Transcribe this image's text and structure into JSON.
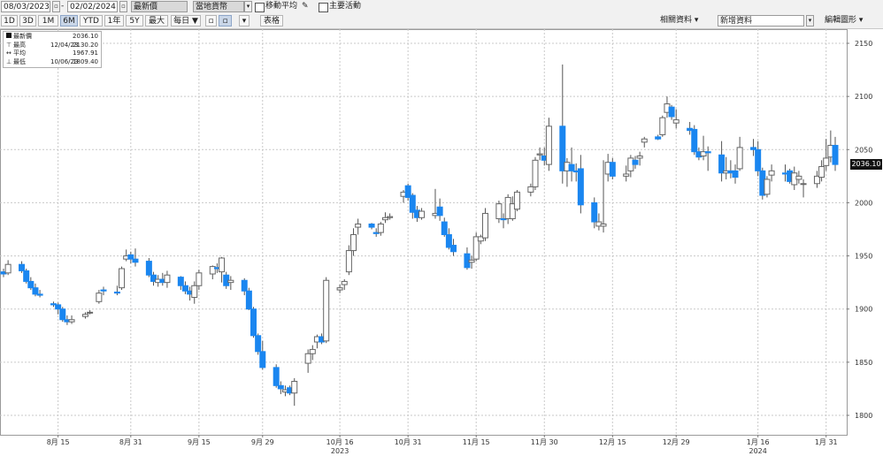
{
  "toolbar": {
    "start_date": "08/03/2023",
    "end_date": "02/02/2024",
    "field_value": "最新價",
    "currency_value": "當地貨幣",
    "moving_avg_label": "移動平均",
    "key_events_label": "主要活動",
    "periods": [
      "1D",
      "3D",
      "1M",
      "6M",
      "YTD",
      "1年",
      "5Y",
      "最大"
    ],
    "selected_period": "6M",
    "frequency_value": "每日 ▼",
    "table_label": "表格",
    "related_data_label": "相關資料",
    "new_data_label": "新增資料",
    "edit_chart_label": "編輯圖形"
  },
  "legend": {
    "last": {
      "label": "最新價",
      "value": "2036.10"
    },
    "high": {
      "label": "最高",
      "date": "12/04/23",
      "value": "2130.20"
    },
    "average": {
      "label": "平均",
      "value": "1967.91"
    },
    "low": {
      "label": "最低",
      "date": "10/06/23",
      "value": "1809.40"
    }
  },
  "current_price_label": "2036.10",
  "colors": {
    "up": "#ffffff",
    "down": "#1a86f0",
    "grid": "#c9c9c9",
    "wick": "#555555"
  },
  "chart_data": {
    "type": "candlestick",
    "ylim": [
      1780,
      2160
    ],
    "y_ticks": [
      1800,
      1850,
      1900,
      1950,
      2000,
      2050,
      2100,
      2150
    ],
    "x_ticks": [
      {
        "date": "2023-08-15",
        "label": "8月 15"
      },
      {
        "date": "2023-08-31",
        "label": "8月 31"
      },
      {
        "date": "2023-09-15",
        "label": "9月 15"
      },
      {
        "date": "2023-09-29",
        "label": "9月 29"
      },
      {
        "date": "2023-10-16",
        "label": "10月 16"
      },
      {
        "date": "2023-10-31",
        "label": "10月 31"
      },
      {
        "date": "2023-11-15",
        "label": "11月 15"
      },
      {
        "date": "2023-11-30",
        "label": "11月 30"
      },
      {
        "date": "2023-12-15",
        "label": "12月 15"
      },
      {
        "date": "2023-12-29",
        "label": "12月 29"
      },
      {
        "date": "2024-01-16",
        "label": "1月 16"
      },
      {
        "date": "2024-01-31",
        "label": "1月 31"
      }
    ],
    "year_labels": [
      {
        "date": "2023-10-16",
        "label": "2023"
      },
      {
        "date": "2024-01-16",
        "label": "2024"
      }
    ],
    "date_range": [
      "2023-08-03",
      "2024-02-02"
    ],
    "ohlc": [
      [
        "2023-08-03",
        1935,
        1938,
        1930,
        1933
      ],
      [
        "2023-08-04",
        1934,
        1946,
        1932,
        1942
      ],
      [
        "2023-08-07",
        1942,
        1945,
        1934,
        1936
      ],
      [
        "2023-08-08",
        1936,
        1938,
        1924,
        1926
      ],
      [
        "2023-08-09",
        1926,
        1930,
        1918,
        1920
      ],
      [
        "2023-08-10",
        1920,
        1924,
        1912,
        1914
      ],
      [
        "2023-08-11",
        1914,
        1918,
        1911,
        1913
      ],
      [
        "2023-08-14",
        1905,
        1907,
        1902,
        1904
      ],
      [
        "2023-08-15",
        1904,
        1906,
        1895,
        1900
      ],
      [
        "2023-08-16",
        1900,
        1902,
        1888,
        1890
      ],
      [
        "2023-08-17",
        1890,
        1894,
        1885,
        1888
      ],
      [
        "2023-08-18",
        1888,
        1894,
        1886,
        1890
      ],
      [
        "2023-08-21",
        1893,
        1897,
        1891,
        1895
      ],
      [
        "2023-08-22",
        1897,
        1899,
        1895,
        1897
      ],
      [
        "2023-08-24",
        1907,
        1918,
        1905,
        1915
      ],
      [
        "2023-08-25",
        1918,
        1921,
        1913,
        1917
      ],
      [
        "2023-08-28",
        1916,
        1922,
        1913,
        1915
      ],
      [
        "2023-08-29",
        1920,
        1940,
        1918,
        1938
      ],
      [
        "2023-08-30",
        1947,
        1956,
        1945,
        1950
      ],
      [
        "2023-08-31",
        1951,
        1954,
        1943,
        1947
      ],
      [
        "2023-09-01",
        1947,
        1957,
        1940,
        1944
      ],
      [
        "2023-09-04",
        1945,
        1948,
        1930,
        1932
      ],
      [
        "2023-09-05",
        1932,
        1935,
        1922,
        1926
      ],
      [
        "2023-09-06",
        1925,
        1932,
        1921,
        1928
      ],
      [
        "2023-09-07",
        1928,
        1934,
        1922,
        1925
      ],
      [
        "2023-09-08",
        1925,
        1936,
        1920,
        1932
      ],
      [
        "2023-09-11",
        1930,
        1931,
        1918,
        1922
      ],
      [
        "2023-09-12",
        1922,
        1926,
        1914,
        1917
      ],
      [
        "2023-09-13",
        1917,
        1921,
        1908,
        1914
      ],
      [
        "2023-09-14",
        1911,
        1926,
        1905,
        1922
      ],
      [
        "2023-09-15",
        1922,
        1937,
        1918,
        1934
      ],
      [
        "2023-09-18",
        1933,
        1941,
        1928,
        1940
      ],
      [
        "2023-09-19",
        1939,
        1943,
        1934,
        1938
      ],
      [
        "2023-09-20",
        1935,
        1949,
        1925,
        1948
      ],
      [
        "2023-09-21",
        1932,
        1935,
        1919,
        1922
      ],
      [
        "2023-09-22",
        1925,
        1931,
        1918,
        1927
      ],
      [
        "2023-09-25",
        1927,
        1929,
        1913,
        1917
      ],
      [
        "2023-09-26",
        1917,
        1920,
        1899,
        1900
      ],
      [
        "2023-09-27",
        1900,
        1902,
        1873,
        1875
      ],
      [
        "2023-09-28",
        1875,
        1877,
        1857,
        1860
      ],
      [
        "2023-09-29",
        1860,
        1870,
        1843,
        1845
      ],
      [
        "2023-10-02",
        1845,
        1848,
        1826,
        1828
      ],
      [
        "2023-10-03",
        1828,
        1832,
        1820,
        1825
      ],
      [
        "2023-10-04",
        1822,
        1828,
        1818,
        1824
      ],
      [
        "2023-10-05",
        1826,
        1828,
        1819,
        1821
      ],
      [
        "2023-10-06",
        1821,
        1835,
        1809,
        1832
      ],
      [
        "2023-10-09",
        1849,
        1862,
        1840,
        1858
      ],
      [
        "2023-10-10",
        1858,
        1866,
        1852,
        1862
      ],
      [
        "2023-10-11",
        1869,
        1876,
        1863,
        1874
      ],
      [
        "2023-10-12",
        1874,
        1877,
        1867,
        1869
      ],
      [
        "2023-10-13",
        1870,
        1930,
        1868,
        1927
      ],
      [
        "2023-10-16",
        1918,
        1923,
        1915,
        1920
      ],
      [
        "2023-10-17",
        1923,
        1928,
        1918,
        1926
      ],
      [
        "2023-10-18",
        1935,
        1960,
        1932,
        1955
      ],
      [
        "2023-10-19",
        1955,
        1976,
        1950,
        1970
      ],
      [
        "2023-10-20",
        1977,
        1985,
        1970,
        1980
      ],
      [
        "2023-10-23",
        1980,
        1981,
        1975,
        1977
      ],
      [
        "2023-10-24",
        1972,
        1976,
        1968,
        1971
      ],
      [
        "2023-10-25",
        1972,
        1982,
        1969,
        1980
      ],
      [
        "2023-10-26",
        1984,
        1991,
        1981,
        1986
      ],
      [
        "2023-10-27",
        1986,
        1990,
        1984,
        1987
      ],
      [
        "2023-10-30",
        2006,
        2012,
        2000,
        2010
      ],
      [
        "2023-10-31",
        2016,
        2018,
        2002,
        2005
      ],
      [
        "2023-11-01",
        2007,
        2009,
        1985,
        1991
      ],
      [
        "2023-11-02",
        1993,
        1997,
        1982,
        1986
      ],
      [
        "2023-11-03",
        1986,
        1995,
        1984,
        1992
      ],
      [
        "2023-11-06",
        1988,
        2013,
        1985,
        1990
      ],
      [
        "2023-11-07",
        1996,
        2004,
        1983,
        1988
      ],
      [
        "2023-11-08",
        1982,
        1986,
        1968,
        1970
      ],
      [
        "2023-11-09",
        1970,
        1976,
        1956,
        1958
      ],
      [
        "2023-11-10",
        1960,
        1966,
        1950,
        1954
      ],
      [
        "2023-11-13",
        1952,
        1958,
        1937,
        1939
      ],
      [
        "2023-11-14",
        1944,
        1950,
        1938,
        1946
      ],
      [
        "2023-11-15",
        1947,
        1972,
        1945,
        1968
      ],
      [
        "2023-11-16",
        1964,
        1970,
        1961,
        1968
      ],
      [
        "2023-11-17",
        1967,
        1995,
        1964,
        1990
      ],
      [
        "2023-11-20",
        1985,
        2002,
        1981,
        1999
      ],
      [
        "2023-11-21",
        1985,
        1990,
        1976,
        1984
      ],
      [
        "2023-11-22",
        1985,
        2008,
        1980,
        2005
      ],
      [
        "2023-11-23",
        1985,
        2006,
        1983,
        1999
      ],
      [
        "2023-11-24",
        1994,
        2012,
        1992,
        2010
      ],
      [
        "2023-11-27",
        2010,
        2018,
        2006,
        2015
      ],
      [
        "2023-11-28",
        2015,
        2043,
        2012,
        2040
      ],
      [
        "2023-11-29",
        2045,
        2052,
        2040,
        2046
      ],
      [
        "2023-11-30",
        2044,
        2052,
        2035,
        2040
      ],
      [
        "2023-12-01",
        2036,
        2080,
        2030,
        2072
      ],
      [
        "2023-12-04",
        2072,
        2130,
        2018,
        2030
      ],
      [
        "2023-12-05",
        2030,
        2042,
        2015,
        2038
      ],
      [
        "2023-12-06",
        2036,
        2052,
        2020,
        2030
      ],
      [
        "2023-12-07",
        2030,
        2037,
        2020,
        2029
      ],
      [
        "2023-12-08",
        2032,
        2045,
        1990,
        1998
      ],
      [
        "2023-12-11",
        2000,
        2005,
        1976,
        1982
      ],
      [
        "2023-12-12",
        1978,
        1990,
        1974,
        1982
      ],
      [
        "2023-12-13",
        1978,
        2040,
        1972,
        1980
      ],
      [
        "2023-12-14",
        2027,
        2046,
        2020,
        2038
      ],
      [
        "2023-12-15",
        2038,
        2042,
        2022,
        2025
      ],
      [
        "2023-12-18",
        2025,
        2035,
        2020,
        2027
      ],
      [
        "2023-12-19",
        2030,
        2045,
        2024,
        2042
      ],
      [
        "2023-12-20",
        2040,
        2044,
        2032,
        2036
      ],
      [
        "2023-12-21",
        2042,
        2048,
        2035,
        2044
      ],
      [
        "2023-12-22",
        2057,
        2062,
        2052,
        2060
      ],
      [
        "2023-12-25",
        2062,
        2064,
        2059,
        2060
      ],
      [
        "2023-12-26",
        2064,
        2082,
        2062,
        2080
      ],
      [
        "2023-12-27",
        2085,
        2100,
        2080,
        2093
      ],
      [
        "2023-12-28",
        2090,
        2092,
        2078,
        2081
      ],
      [
        "2023-12-29",
        2075,
        2088,
        2070,
        2078
      ],
      [
        "2024-01-01",
        2070,
        2076,
        2064,
        2068
      ],
      [
        "2024-01-02",
        2069,
        2073,
        2045,
        2048
      ],
      [
        "2024-01-03",
        2048,
        2052,
        2040,
        2043
      ],
      [
        "2024-01-04",
        2044,
        2063,
        2040,
        2048
      ],
      [
        "2024-01-05",
        2048,
        2053,
        2030,
        2047
      ],
      [
        "2024-01-08",
        2045,
        2058,
        2020,
        2028
      ],
      [
        "2024-01-09",
        2028,
        2043,
        2022,
        2030
      ],
      [
        "2024-01-10",
        2030,
        2040,
        2023,
        2028
      ],
      [
        "2024-01-11",
        2030,
        2036,
        2018,
        2024
      ],
      [
        "2024-01-12",
        2032,
        2062,
        2030,
        2052
      ],
      [
        "2024-01-15",
        2052,
        2060,
        2044,
        2050
      ],
      [
        "2024-01-16",
        2050,
        2058,
        2025,
        2030
      ],
      [
        "2024-01-17",
        2030,
        2033,
        2003,
        2007
      ],
      [
        "2024-01-18",
        2008,
        2025,
        2005,
        2022
      ],
      [
        "2024-01-19",
        2026,
        2036,
        2020,
        2030
      ],
      [
        "2024-01-22",
        2028,
        2036,
        2020,
        2027
      ],
      [
        "2024-01-23",
        2030,
        2032,
        2018,
        2020
      ],
      [
        "2024-01-24",
        2017,
        2034,
        2012,
        2028
      ],
      [
        "2024-01-25",
        2022,
        2030,
        2018,
        2025
      ],
      [
        "2024-01-26",
        2018,
        2022,
        2005,
        2018
      ],
      [
        "2024-01-29",
        2018,
        2030,
        2014,
        2025
      ],
      [
        "2024-01-30",
        2024,
        2040,
        2020,
        2034
      ],
      [
        "2024-01-31",
        2035,
        2060,
        2030,
        2042
      ],
      [
        "2024-02-01",
        2043,
        2068,
        2038,
        2054
      ],
      [
        "2024-02-02",
        2054,
        2062,
        2030,
        2036
      ]
    ]
  }
}
